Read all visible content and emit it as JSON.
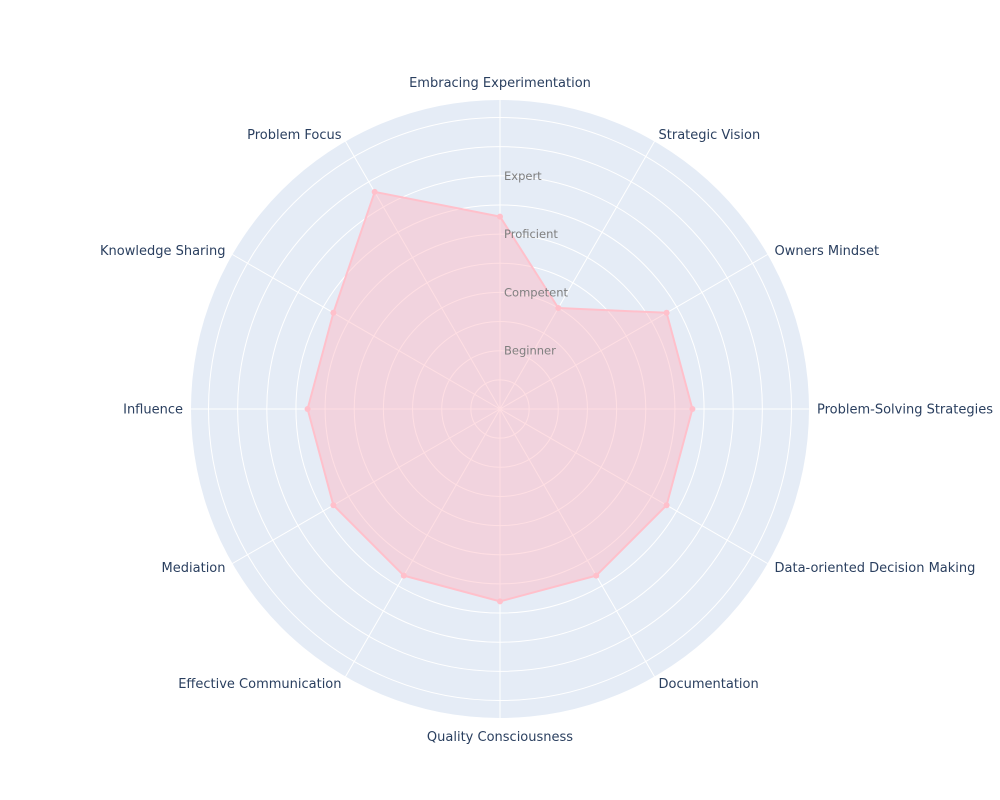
{
  "chart_data": {
    "type": "radar",
    "title": "",
    "categories": [
      "Embracing Experimentation",
      "Strategic Vision",
      "Owners Mindset",
      "Problem-Solving Strategies",
      "Data-oriented Decision Making",
      "Documentation",
      "Quality Consciousness",
      "Effective Communication",
      "Mediation",
      "Influence",
      "Knowledge Sharing",
      "Problem Focus"
    ],
    "radial_ticks": [
      {
        "value": 1,
        "label": "Beginner"
      },
      {
        "value": 2,
        "label": "Competent"
      },
      {
        "value": 3,
        "label": "Proficient"
      },
      {
        "value": 4,
        "label": "Expert"
      }
    ],
    "rlim": [
      0,
      5.3
    ],
    "series": [
      {
        "values": [
          3.3,
          2.0,
          3.3,
          3.3,
          3.3,
          3.3,
          3.3,
          3.3,
          3.3,
          3.3,
          3.3,
          4.3
        ]
      }
    ],
    "colors": {
      "background": "#e5ecf6",
      "grid": "#ffffff",
      "series_line": "#ffc0cb",
      "series_fill": "rgba(255,182,193,0.45)",
      "axis_text": "#2a3f5f",
      "tick_text": "#7f7f7f"
    },
    "grid": true,
    "legend": "none"
  }
}
